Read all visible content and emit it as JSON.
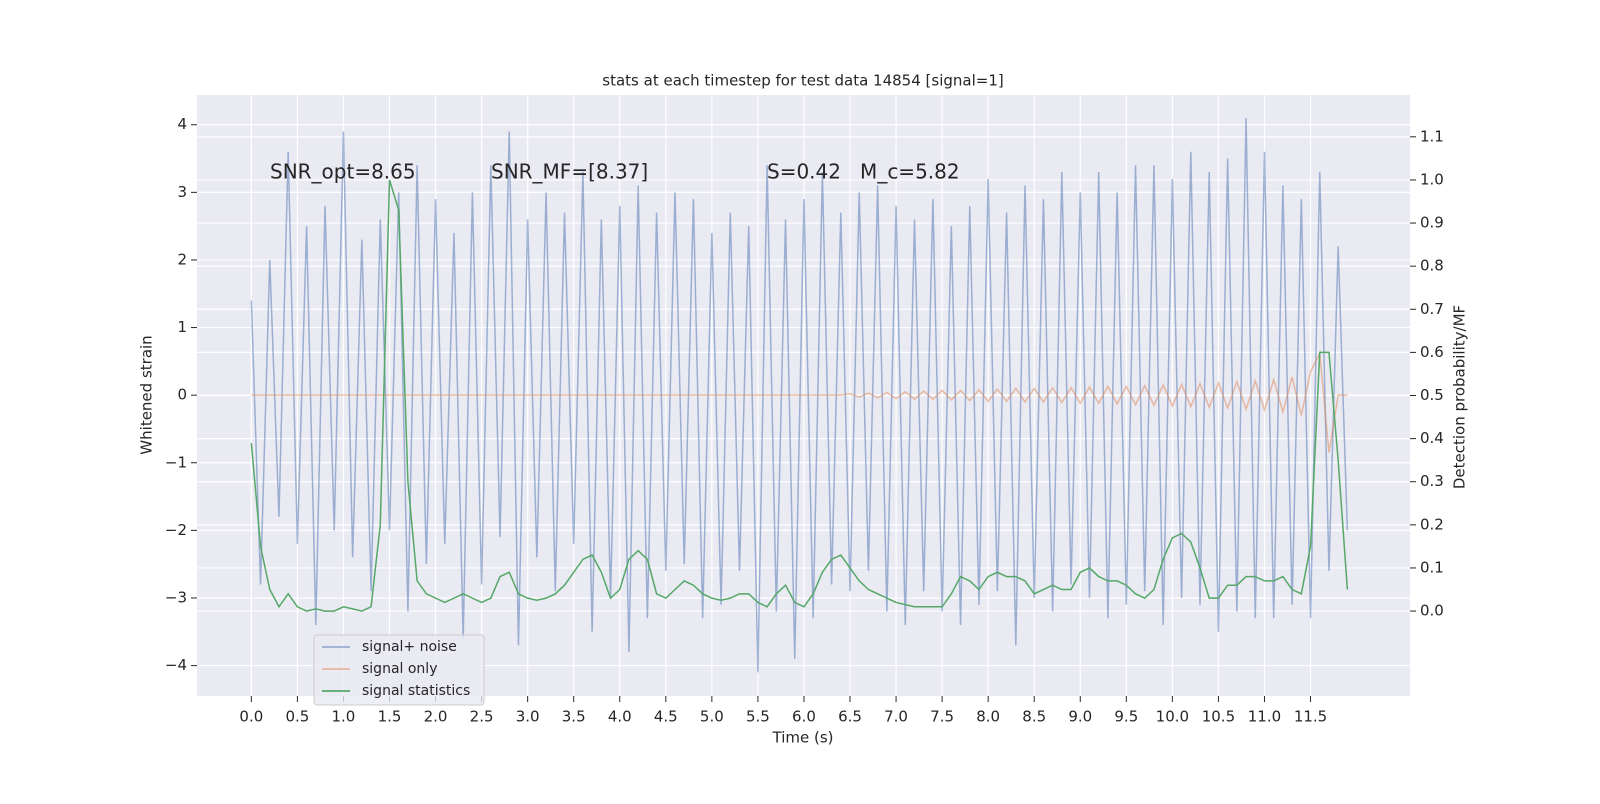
{
  "chart_data": {
    "type": "line",
    "title": "stats at each timestep for test data 14854 [signal=1]",
    "xlabel": "Time (s)",
    "ylabel": "Whitened strain",
    "y2label": "Detection probability/MF",
    "annotations": [
      "SNR_opt=8.65",
      "SNR_MF=[8.37]",
      "S=0.42   M_c=5.82"
    ],
    "x": [
      0,
      0.1,
      0.2,
      0.3,
      0.4,
      0.5,
      0.6,
      0.7,
      0.8,
      0.9,
      1,
      1.1,
      1.2,
      1.3,
      1.4,
      1.5,
      1.6,
      1.7,
      1.8,
      1.9,
      2,
      2.1,
      2.2,
      2.3,
      2.4,
      2.5,
      2.6,
      2.7,
      2.8,
      2.9,
      3,
      3.1,
      3.2,
      3.3,
      3.4,
      3.5,
      3.6,
      3.7,
      3.8,
      3.9,
      4,
      4.1,
      4.2,
      4.3,
      4.4,
      4.5,
      4.6,
      4.7,
      4.8,
      4.9,
      5,
      5.1,
      5.2,
      5.3,
      5.4,
      5.5,
      5.6,
      5.7,
      5.8,
      5.9,
      6,
      6.1,
      6.2,
      6.3,
      6.4,
      6.5,
      6.6,
      6.7,
      6.8,
      6.9,
      7,
      7.1,
      7.2,
      7.3,
      7.4,
      7.5,
      7.6,
      7.7,
      7.8,
      7.9,
      8,
      8.1,
      8.2,
      8.3,
      8.4,
      8.5,
      8.6,
      8.7,
      8.8,
      8.9,
      9,
      9.1,
      9.2,
      9.3,
      9.4,
      9.5,
      9.6,
      9.7,
      9.8,
      9.9,
      10,
      10.1,
      10.2,
      10.3,
      10.4,
      10.5,
      10.6,
      10.7,
      10.8,
      10.9,
      11,
      11.1,
      11.2,
      11.3,
      11.4,
      11.5,
      11.6,
      11.7,
      11.8,
      11.9
    ],
    "series": [
      {
        "name": "signal+ noise",
        "color": "#4c72b0",
        "values": [
          1.4,
          -2.8,
          2.0,
          -1.8,
          3.6,
          -2.2,
          2.5,
          -3.4,
          2.8,
          -2.0,
          3.9,
          -2.4,
          2.3,
          -2.9,
          2.6,
          -2.0,
          3.0,
          -3.2,
          3.4,
          -2.5,
          2.9,
          -2.2,
          2.4,
          -3.6,
          3.0,
          -2.8,
          3.4,
          -2.1,
          3.9,
          -3.7,
          2.6,
          -2.4,
          3.0,
          -2.9,
          2.7,
          -2.2,
          3.3,
          -3.5,
          2.6,
          -3.0,
          2.8,
          -3.8,
          3.1,
          -3.3,
          2.7,
          -2.6,
          3.0,
          -2.5,
          2.9,
          -3.3,
          2.4,
          -3.1,
          2.7,
          -2.6,
          2.5,
          -4.1,
          3.4,
          -3.2,
          2.6,
          -3.9,
          2.9,
          -3.3,
          3.3,
          -2.8,
          2.7,
          -2.9,
          3.0,
          -2.6,
          3.1,
          -3.2,
          2.8,
          -3.4,
          2.6,
          -2.9,
          2.9,
          -3.2,
          2.5,
          -3.4,
          2.8,
          -3.1,
          3.2,
          -2.9,
          2.7,
          -3.7,
          3.1,
          -3.0,
          2.9,
          -3.2,
          3.3,
          -2.8,
          3.0,
          -3.0,
          3.3,
          -3.3,
          3.0,
          -3.1,
          3.4,
          -2.9,
          3.4,
          -3.4,
          3.2,
          -3.0,
          3.6,
          -3.1,
          3.3,
          -3.5,
          3.5,
          -3.2,
          4.1,
          -3.3,
          3.6,
          -3.3,
          3.1,
          -3.1,
          2.9,
          -3.3,
          3.3,
          -2.6,
          2.2,
          -2.0
        ]
      },
      {
        "name": "signal only",
        "color": "#dd8452",
        "values": [
          0,
          0,
          0,
          0,
          0,
          0,
          0,
          0,
          0,
          0,
          0,
          0,
          0,
          0,
          0,
          0,
          0,
          0,
          0,
          0,
          0,
          0,
          0,
          0,
          0,
          0,
          0,
          0,
          0,
          0,
          0,
          0,
          0,
          0,
          0,
          0,
          0,
          0,
          0,
          0,
          0,
          0,
          0,
          0,
          0,
          0,
          0,
          0,
          0,
          0,
          0,
          0,
          0,
          0,
          0,
          0,
          0,
          0,
          0,
          0,
          0,
          0,
          0,
          0,
          0,
          0.02,
          -0.03,
          0.03,
          -0.04,
          0.04,
          -0.05,
          0.05,
          -0.06,
          0.06,
          -0.06,
          0.07,
          -0.07,
          0.07,
          -0.08,
          0.08,
          -0.09,
          0.09,
          -0.09,
          0.1,
          -0.1,
          0.1,
          -0.1,
          0.11,
          -0.11,
          0.11,
          -0.12,
          0.12,
          -0.12,
          0.13,
          -0.13,
          0.13,
          -0.14,
          0.14,
          -0.15,
          0.15,
          -0.16,
          0.16,
          -0.17,
          0.17,
          -0.18,
          0.18,
          -0.19,
          0.2,
          -0.21,
          0.21,
          -0.22,
          0.23,
          -0.25,
          0.27,
          -0.3,
          0.35,
          0.62,
          -0.85,
          0,
          0
        ]
      },
      {
        "name": "signal statistics",
        "color": "#55a868",
        "axis": "y2",
        "values": [
          0.39,
          0.15,
          0.05,
          0.01,
          0.04,
          0.01,
          0.0,
          0.005,
          0.0,
          0.0,
          0.01,
          0.005,
          0.0,
          0.01,
          0.2,
          1.0,
          0.93,
          0.3,
          0.07,
          0.04,
          0.03,
          0.02,
          0.03,
          0.04,
          0.03,
          0.02,
          0.03,
          0.08,
          0.09,
          0.04,
          0.03,
          0.025,
          0.03,
          0.04,
          0.06,
          0.09,
          0.12,
          0.13,
          0.09,
          0.03,
          0.05,
          0.12,
          0.14,
          0.12,
          0.04,
          0.03,
          0.05,
          0.07,
          0.06,
          0.04,
          0.03,
          0.025,
          0.03,
          0.04,
          0.04,
          0.02,
          0.01,
          0.04,
          0.06,
          0.02,
          0.01,
          0.04,
          0.09,
          0.12,
          0.13,
          0.1,
          0.07,
          0.05,
          0.04,
          0.03,
          0.02,
          0.015,
          0.01,
          0.01,
          0.01,
          0.01,
          0.04,
          0.08,
          0.07,
          0.05,
          0.08,
          0.09,
          0.08,
          0.08,
          0.07,
          0.04,
          0.05,
          0.06,
          0.05,
          0.05,
          0.09,
          0.1,
          0.08,
          0.07,
          0.07,
          0.06,
          0.04,
          0.03,
          0.05,
          0.12,
          0.17,
          0.18,
          0.16,
          0.1,
          0.03,
          0.03,
          0.06,
          0.06,
          0.08,
          0.08,
          0.07,
          0.07,
          0.08,
          0.05,
          0.04,
          0.15,
          0.6,
          0.6,
          0.35,
          0.05
        ]
      }
    ],
    "xlim": [
      -0.59,
      12.58
    ],
    "xticks": [
      {
        "value": 0,
        "label": "0.0"
      },
      0.5,
      {
        "value": 1,
        "label": "1.0"
      },
      1.5,
      {
        "value": 2,
        "label": "2.0"
      },
      2.5,
      {
        "value": 3,
        "label": "3.0"
      },
      3.5,
      {
        "value": 4,
        "label": "4.0"
      },
      4.5,
      {
        "value": 5,
        "label": "5.0"
      },
      5.5,
      {
        "value": 6,
        "label": "6.0"
      },
      6.5,
      {
        "value": 7,
        "label": "7.0"
      },
      7.5,
      {
        "value": 8,
        "label": "8.0"
      },
      8.5,
      {
        "value": 9,
        "label": "9.0"
      },
      9.5,
      {
        "value": 10,
        "label": "10.0"
      },
      10.5,
      {
        "value": 11,
        "label": "11.0"
      },
      11.5
    ],
    "ylim": [
      -4.45,
      4.44
    ],
    "yticks": [
      {
        "value": -4,
        "label": "−4"
      },
      {
        "value": -3,
        "label": "−3"
      },
      {
        "value": -2,
        "label": "−2"
      },
      {
        "value": -1,
        "label": "−1"
      },
      0,
      1,
      2,
      3,
      4
    ],
    "y2lim": [
      -0.197,
      1.197
    ],
    "y2ticks": [
      {
        "value": 0,
        "label": "0.0"
      },
      0.1,
      0.2,
      0.3,
      0.4,
      0.5,
      0.6,
      0.7,
      0.8,
      0.9,
      {
        "value": 1,
        "label": "1.0"
      },
      1.1
    ],
    "grid": true,
    "legend": "lower left"
  }
}
